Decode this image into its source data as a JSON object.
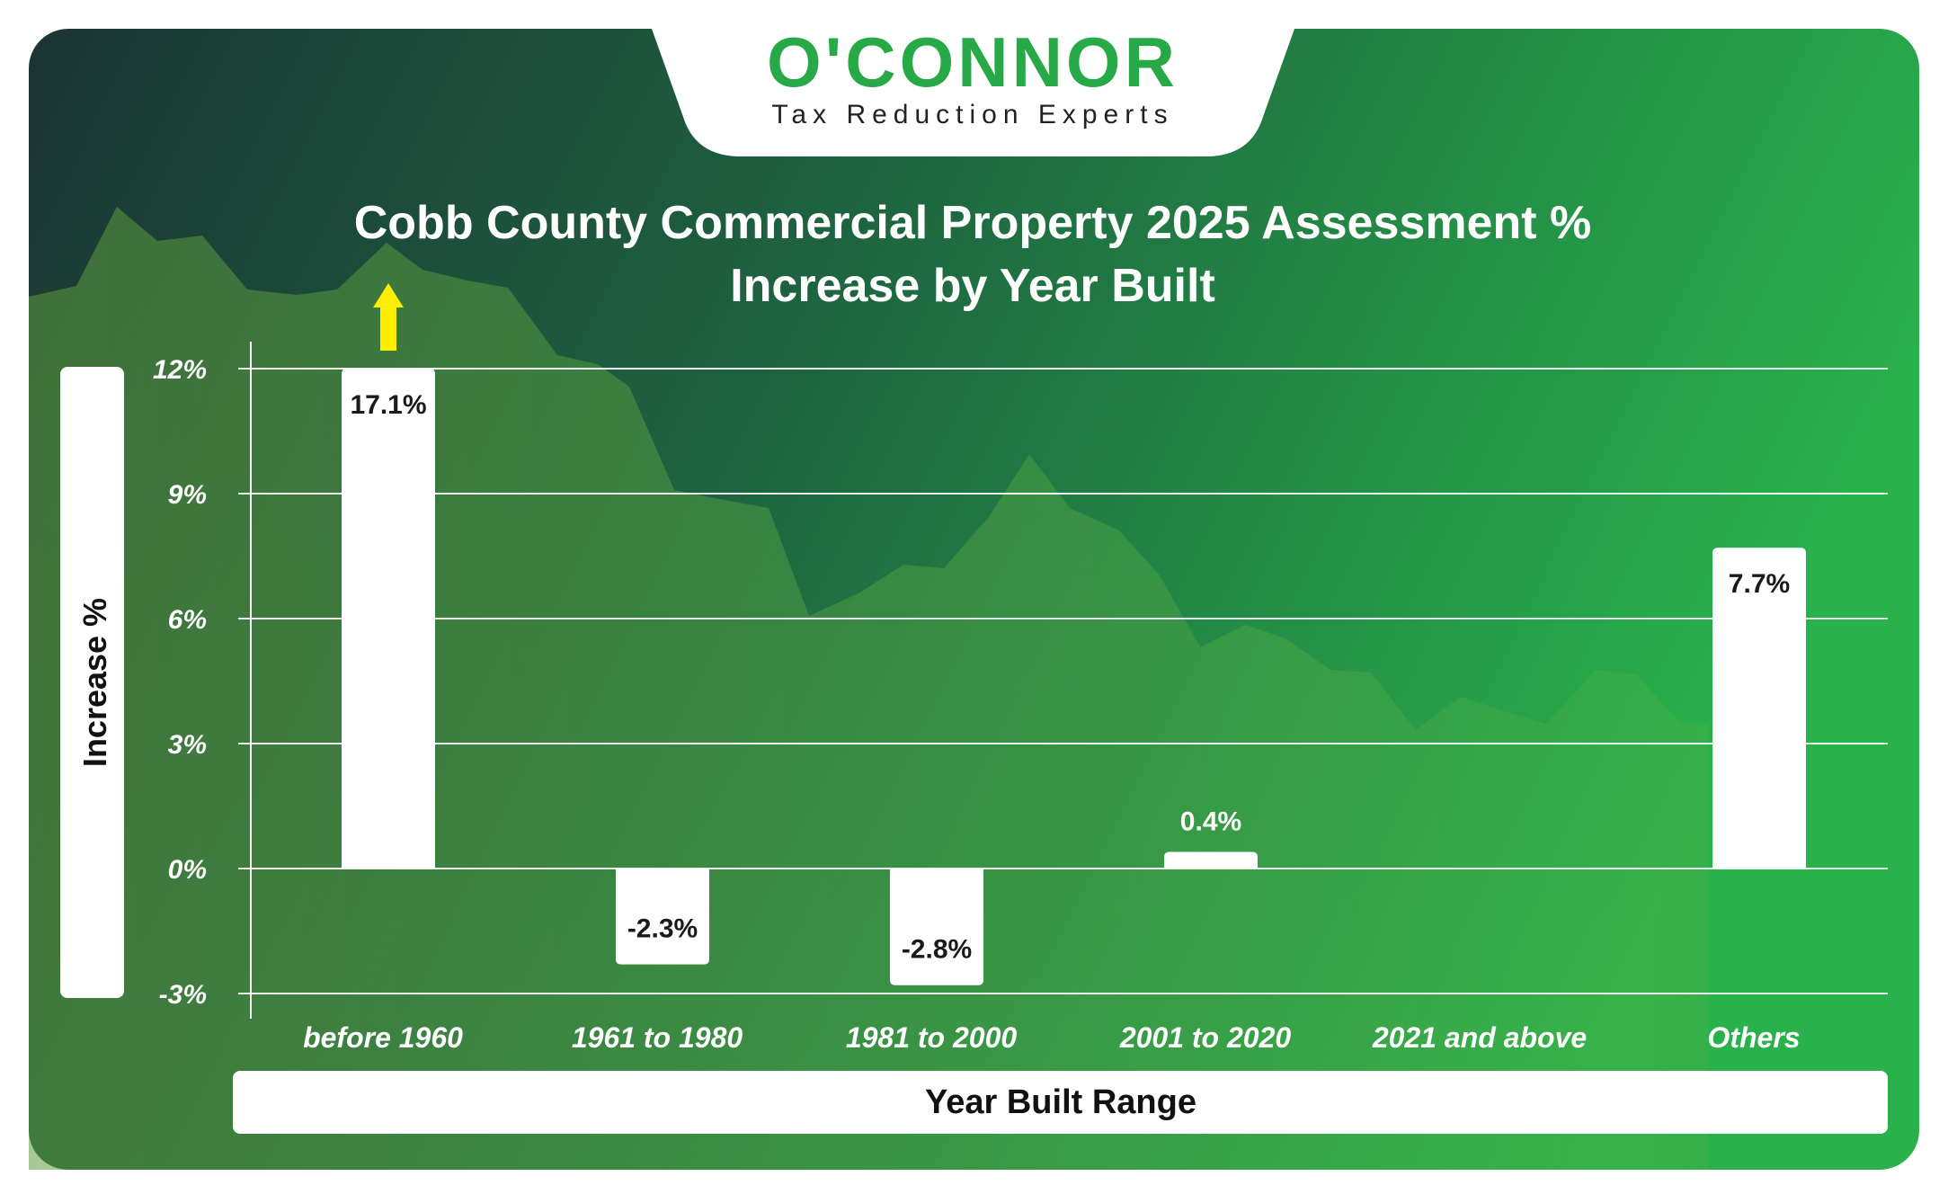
{
  "brand": {
    "logo_text": "O'CONNOR",
    "tagline": "Tax Reduction Experts",
    "logo_color": "#27a947",
    "tagline_color": "#222222"
  },
  "colors": {
    "bg_dark": "#1c3a36",
    "bg_mid": "#1f6a42",
    "bg_light": "#2ab34c",
    "mountain": "#5a9a3c",
    "bar_fill": "#ffffff",
    "value_text": "#1a1a1a",
    "gridline": "#ffffff",
    "arrow": "#ffee00"
  },
  "chart_data": {
    "type": "bar",
    "title_lines": [
      "Cobb County Commercial Property 2025 Assessment %",
      "Increase by Year Built"
    ],
    "xlabel": "Year Built Range",
    "ylabel": "Increase %",
    "categories": [
      "before 1960",
      "1961 to 1980",
      "1981 to 2000",
      "2001 to 2020",
      "2021 and above",
      "Others"
    ],
    "values": [
      17.1,
      -2.3,
      -2.8,
      0.4,
      null,
      7.7
    ],
    "value_labels": [
      "17.1%",
      "-2.3%",
      "-2.8%",
      "0.4%",
      "",
      "7.7%"
    ],
    "y_ticks": [
      12,
      9,
      6,
      3,
      0,
      -3
    ],
    "y_tick_labels": [
      "12%",
      "9%",
      "6%",
      "3%",
      "0%",
      "-3%"
    ],
    "ylim": [
      -3,
      12
    ],
    "grid": true,
    "legend": "none",
    "annotations": [
      {
        "type": "arrow-up",
        "category": "before 1960",
        "meaning": "value exceeds axis maximum"
      }
    ]
  }
}
